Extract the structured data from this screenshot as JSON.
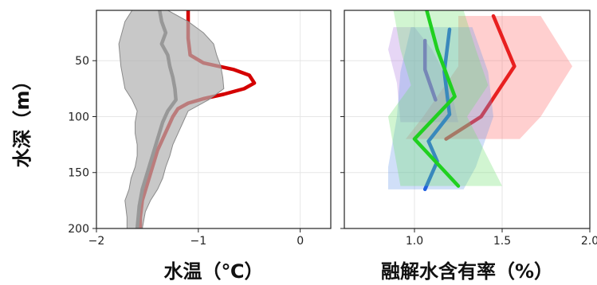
{
  "chart_data": [
    {
      "type": "line",
      "xlabel": "水温（℃）",
      "ylabel": "水深（m）",
      "xlim": [
        -2,
        0.3
      ],
      "ylim": [
        200,
        5
      ],
      "y_inverted": true,
      "grid": true,
      "x_ticks": [
        {
          "value": -2,
          "label": "−2"
        },
        {
          "value": -1,
          "label": "−1"
        },
        {
          "value": 0,
          "label": "0"
        }
      ],
      "y_ticks": [
        {
          "value": 50,
          "label": "50"
        },
        {
          "value": 100,
          "label": "100"
        },
        {
          "value": 150,
          "label": "150"
        },
        {
          "value": 200,
          "label": "200"
        }
      ],
      "series": [
        {
          "color": "#d40000",
          "style": "line",
          "points": [
            [
              -1.1,
              5
            ],
            [
              -1.1,
              15
            ],
            [
              -1.1,
              30
            ],
            [
              -1.08,
              45
            ],
            [
              -0.95,
              52
            ],
            [
              -0.65,
              58
            ],
            [
              -0.5,
              63
            ],
            [
              -0.45,
              70
            ],
            [
              -0.55,
              75
            ],
            [
              -0.75,
              80
            ],
            [
              -0.95,
              84
            ],
            [
              -1.1,
              88
            ],
            [
              -1.2,
              93
            ],
            [
              -1.25,
              100
            ],
            [
              -1.3,
              110
            ],
            [
              -1.35,
              120
            ],
            [
              -1.4,
              130
            ],
            [
              -1.45,
              145
            ],
            [
              -1.5,
              160
            ],
            [
              -1.55,
              175
            ],
            [
              -1.57,
              190
            ],
            [
              -1.57,
              200
            ]
          ]
        },
        {
          "color": "#606060",
          "style": "line",
          "points": [
            [
              -1.38,
              5
            ],
            [
              -1.36,
              15
            ],
            [
              -1.32,
              25
            ],
            [
              -1.36,
              35
            ],
            [
              -1.3,
              45
            ],
            [
              -1.28,
              55
            ],
            [
              -1.25,
              65
            ],
            [
              -1.23,
              75
            ],
            [
              -1.22,
              85
            ],
            [
              -1.3,
              95
            ],
            [
              -1.35,
              105
            ],
            [
              -1.4,
              120
            ],
            [
              -1.45,
              135
            ],
            [
              -1.5,
              150
            ],
            [
              -1.55,
              165
            ],
            [
              -1.58,
              180
            ],
            [
              -1.6,
              200
            ]
          ]
        },
        {
          "color": "#b0b0b0",
          "style": "band",
          "upper": [
            [
              -1.3,
              5
            ],
            [
              -1.1,
              15
            ],
            [
              -0.95,
              25
            ],
            [
              -0.85,
              35
            ],
            [
              -0.82,
              45
            ],
            [
              -0.78,
              55
            ],
            [
              -0.76,
              65
            ],
            [
              -0.75,
              75
            ],
            [
              -0.9,
              85
            ],
            [
              -1.1,
              95
            ],
            [
              -1.15,
              105
            ],
            [
              -1.2,
              115
            ],
            [
              -1.25,
              125
            ],
            [
              -1.28,
              135
            ],
            [
              -1.32,
              145
            ],
            [
              -1.35,
              155
            ],
            [
              -1.4,
              165
            ],
            [
              -1.47,
              175
            ],
            [
              -1.52,
              185
            ],
            [
              -1.55,
              200
            ]
          ],
          "lower": [
            [
              -1.65,
              5
            ],
            [
              -1.72,
              15
            ],
            [
              -1.75,
              25
            ],
            [
              -1.78,
              35
            ],
            [
              -1.77,
              45
            ],
            [
              -1.76,
              55
            ],
            [
              -1.74,
              65
            ],
            [
              -1.72,
              75
            ],
            [
              -1.65,
              85
            ],
            [
              -1.6,
              95
            ],
            [
              -1.62,
              105
            ],
            [
              -1.62,
              115
            ],
            [
              -1.6,
              125
            ],
            [
              -1.6,
              135
            ],
            [
              -1.62,
              145
            ],
            [
              -1.66,
              155
            ],
            [
              -1.68,
              165
            ],
            [
              -1.72,
              175
            ],
            [
              -1.7,
              190
            ],
            [
              -1.7,
              200
            ]
          ]
        }
      ]
    },
    {
      "type": "line",
      "xlabel": "融解水含有率（%）",
      "ylabel": "",
      "xlim": [
        0.6,
        2.0
      ],
      "ylim": [
        200,
        5
      ],
      "y_inverted": true,
      "grid": true,
      "x_ticks": [
        {
          "value": 1.0,
          "label": "1.0"
        },
        {
          "value": 1.5,
          "label": "1.5"
        },
        {
          "value": 2.0,
          "label": "2.0"
        }
      ],
      "series": [
        {
          "color": "#ff6b6b",
          "style": "band",
          "upper": [
            [
              1.72,
              10
            ],
            [
              1.9,
              55
            ],
            [
              1.72,
              100
            ],
            [
              1.6,
              120
            ]
          ],
          "lower": [
            [
              1.25,
              10
            ],
            [
              1.25,
              55
            ],
            [
              1.05,
              100
            ],
            [
              0.95,
              120
            ]
          ]
        },
        {
          "color": "#e82020",
          "style": "line",
          "points": [
            [
              1.45,
              10
            ],
            [
              1.57,
              55
            ],
            [
              1.38,
              100
            ],
            [
              1.18,
              120
            ]
          ]
        },
        {
          "color": "#b080e0",
          "style": "band",
          "upper": [
            [
              1.0,
              20
            ],
            [
              1.1,
              40
            ],
            [
              1.2,
              70
            ],
            [
              1.25,
              105
            ]
          ],
          "lower": [
            [
              0.88,
              20
            ],
            [
              0.85,
              40
            ],
            [
              0.9,
              70
            ],
            [
              0.92,
              105
            ]
          ]
        },
        {
          "color": "#8040d0",
          "style": "line",
          "points": [
            [
              1.06,
              32
            ],
            [
              1.06,
              58
            ],
            [
              1.12,
              85
            ]
          ]
        },
        {
          "color": "#6c9be8",
          "style": "band",
          "upper": [
            [
              1.33,
              20
            ],
            [
              1.42,
              60
            ],
            [
              1.45,
              100
            ],
            [
              1.35,
              145
            ],
            [
              1.28,
              165
            ]
          ],
          "lower": [
            [
              0.98,
              20
            ],
            [
              0.92,
              60
            ],
            [
              0.9,
              100
            ],
            [
              0.85,
              145
            ],
            [
              0.85,
              165
            ]
          ]
        },
        {
          "color": "#2060e0",
          "style": "line",
          "points": [
            [
              1.2,
              22
            ],
            [
              1.17,
              60
            ],
            [
              1.2,
              98
            ],
            [
              1.08,
              122
            ],
            [
              1.13,
              140
            ],
            [
              1.06,
              165
            ]
          ]
        },
        {
          "color": "#70e070",
          "style": "band",
          "upper": [
            [
              1.28,
              5
            ],
            [
              1.35,
              40
            ],
            [
              1.42,
              72
            ],
            [
              1.3,
              100
            ],
            [
              1.5,
              162
            ]
          ],
          "lower": [
            [
              0.88,
              5
            ],
            [
              0.92,
              40
            ],
            [
              0.98,
              72
            ],
            [
              0.85,
              100
            ],
            [
              0.92,
              162
            ]
          ]
        },
        {
          "color": "#20d020",
          "style": "line",
          "points": [
            [
              1.07,
              5
            ],
            [
              1.13,
              40
            ],
            [
              1.23,
              82
            ],
            [
              1.0,
              120
            ],
            [
              1.25,
              162
            ]
          ]
        }
      ]
    }
  ]
}
